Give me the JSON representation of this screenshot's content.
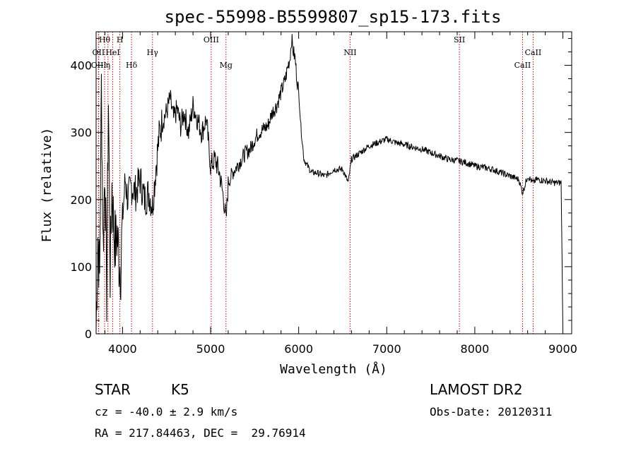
{
  "chart_data": {
    "type": "line",
    "title": "spec-55998-B5599807_sp15-173.fits",
    "xlabel": "Wavelength (Å)",
    "ylabel": "Flux (relative)",
    "xlim": [
      3700,
      9100
    ],
    "ylim": [
      0,
      450
    ],
    "xticks": [
      4000,
      5000,
      6000,
      7000,
      8000,
      9000
    ],
    "yticks": [
      0,
      100,
      200,
      300,
      400
    ],
    "grid": false,
    "series": [
      {
        "x": [
          3700,
          3720,
          3740,
          3760,
          3780,
          3800,
          3820,
          3840,
          3860,
          3880,
          3900,
          3920,
          3940,
          3960,
          3980,
          4000,
          4030,
          4060,
          4100,
          4150,
          4200,
          4250,
          4300,
          4340,
          4380,
          4420,
          4460,
          4500,
          4540,
          4580,
          4620,
          4660,
          4700,
          4750,
          4800,
          4850,
          4900,
          4950,
          5000,
          5050,
          5100,
          5150,
          5175,
          5200,
          5250,
          5300,
          5350,
          5400,
          5450,
          5500,
          5550,
          5600,
          5650,
          5700,
          5750,
          5800,
          5850,
          5880,
          5900,
          5920,
          5940,
          5960,
          5980,
          6000,
          6030,
          6060,
          6100,
          6150,
          6200,
          6300,
          6400,
          6500,
          6563,
          6600,
          6700,
          6800,
          6900,
          7000,
          7100,
          7200,
          7300,
          7400,
          7500,
          7600,
          7700,
          7800,
          7900,
          8000,
          8100,
          8200,
          8300,
          8400,
          8500,
          8542,
          8600,
          8662,
          8700,
          8800,
          8900,
          8980,
          9000
        ],
        "y": [
          5,
          150,
          80,
          370,
          130,
          250,
          60,
          350,
          90,
          220,
          160,
          130,
          150,
          110,
          100,
          170,
          230,
          200,
          220,
          210,
          230,
          200,
          210,
          190,
          250,
          300,
          320,
          330,
          350,
          320,
          335,
          310,
          330,
          300,
          340,
          320,
          300,
          320,
          250,
          260,
          240,
          200,
          165,
          225,
          240,
          250,
          260,
          270,
          275,
          290,
          300,
          305,
          310,
          330,
          340,
          360,
          380,
          400,
          410,
          440,
          420,
          410,
          380,
          360,
          300,
          260,
          250,
          240,
          240,
          235,
          245,
          245,
          225,
          260,
          270,
          280,
          285,
          290,
          285,
          282,
          278,
          275,
          270,
          265,
          260,
          258,
          255,
          250,
          248,
          245,
          240,
          235,
          230,
          210,
          235,
          225,
          230,
          228,
          225,
          225,
          10
        ]
      }
    ],
    "line_markers": [
      {
        "label": "Hθ",
        "x": 3797,
        "row": 0
      },
      {
        "label": "H",
        "x": 3970,
        "row": 0
      },
      {
        "label": "OII",
        "x": 3727,
        "row": 1
      },
      {
        "label": "HeI",
        "x": 3889,
        "row": 1
      },
      {
        "label": "OIII",
        "x": 3730,
        "row": 2
      },
      {
        "label": "η",
        "x": 3835,
        "row": 2
      },
      {
        "label": "Hδ",
        "x": 4102,
        "row": 2
      },
      {
        "label": "Hγ",
        "x": 4340,
        "row": 1
      },
      {
        "label": "OIII",
        "x": 5007,
        "row": 0
      },
      {
        "label": "Mg",
        "x": 5175,
        "row": 2
      },
      {
        "label": "NII",
        "x": 6584,
        "row": 1
      },
      {
        "label": "SII",
        "x": 7825,
        "row": 0
      },
      {
        "label": "CaII",
        "x": 8542,
        "row": 2
      },
      {
        "label": "CaII",
        "x": 8662,
        "row": 1
      }
    ],
    "marker_color": "#cc0000"
  },
  "info": {
    "class": "STAR",
    "subclass": "K5",
    "survey": "LAMOST DR2",
    "cz": "cz = -40.0 ± 2.9 km/s",
    "obs_date": "Obs-Date: 20120311",
    "coords": "RA = 217.84463, DEC =  29.76914"
  }
}
